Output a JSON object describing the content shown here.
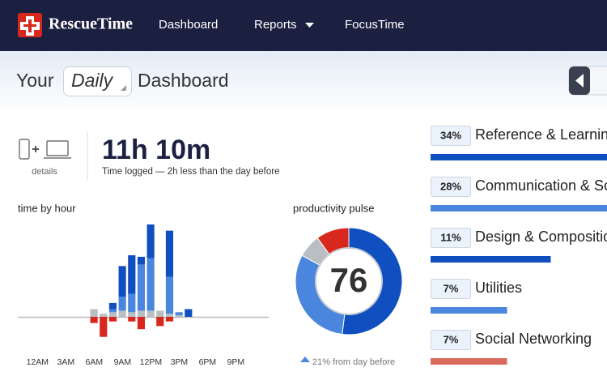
{
  "nav": {
    "brand": "RescueTime",
    "items": [
      "Dashboard",
      "Reports",
      "FocusTime"
    ]
  },
  "header": {
    "prefix": "Your",
    "period": "Daily",
    "suffix": "Dashboard"
  },
  "summary": {
    "details": "details",
    "time": "11h 10m",
    "note": "Time logged — 2h less than the day before"
  },
  "time_by_hour": {
    "type": "bar",
    "title": "time by hour",
    "categories": [
      "12AM",
      null,
      null,
      "3AM",
      null,
      null,
      "6AM",
      null,
      null,
      "9AM",
      null,
      null,
      "12PM",
      null,
      null,
      "3PM",
      null,
      null,
      "6PM",
      null,
      null,
      "9PM",
      null,
      null
    ],
    "series": [
      {
        "color": "#b9bec2",
        "values": [
          null,
          null,
          null,
          null,
          null,
          null,
          5,
          2,
          3,
          4,
          3,
          4,
          4,
          4,
          2,
          1,
          null,
          null,
          null,
          null,
          null,
          null,
          null,
          null
        ]
      },
      {
        "color": "#4a86dd",
        "values": [
          null,
          null,
          null,
          null,
          null,
          null,
          null,
          null,
          2,
          9,
          12,
          30,
          34,
          null,
          24,
          2,
          null,
          null,
          null,
          null,
          null,
          null,
          null,
          null
        ]
      },
      {
        "color": "#0f4fbf",
        "values": [
          null,
          null,
          null,
          null,
          null,
          null,
          null,
          null,
          4,
          20,
          25,
          5,
          22,
          null,
          30,
          null,
          5,
          null,
          null,
          null,
          null,
          null,
          null,
          null
        ]
      },
      {
        "color": "#d8271c",
        "values": [
          null,
          null,
          null,
          null,
          null,
          null,
          -4,
          -13,
          -3,
          null,
          -3,
          -8,
          null,
          -6,
          -3,
          null,
          null,
          null,
          null,
          null,
          null,
          null,
          null,
          null
        ]
      }
    ]
  },
  "productivity_pulse": {
    "type": "pie",
    "title": "productivity pulse",
    "score": 76,
    "note": "21% from day before",
    "values": [
      52,
      31,
      7,
      10
    ],
    "colors": [
      "#0f4fbf",
      "#4a86dd",
      "#b9bec2",
      "#d8271c"
    ]
  },
  "categories": {
    "type": "bar",
    "names": [
      "Reference & Learning",
      "Communication & Scheduling",
      "Design & Composition",
      "Utilities",
      "Social Networking"
    ],
    "values": [
      34,
      28,
      11,
      7,
      7
    ],
    "value_labels": [
      "34%",
      "28%",
      "11%",
      "7%",
      "7%"
    ],
    "colors": [
      "#0f4fbf",
      "#4a86dd",
      "#0f4fbf",
      "#4a86dd",
      "#dc6a5c"
    ]
  }
}
